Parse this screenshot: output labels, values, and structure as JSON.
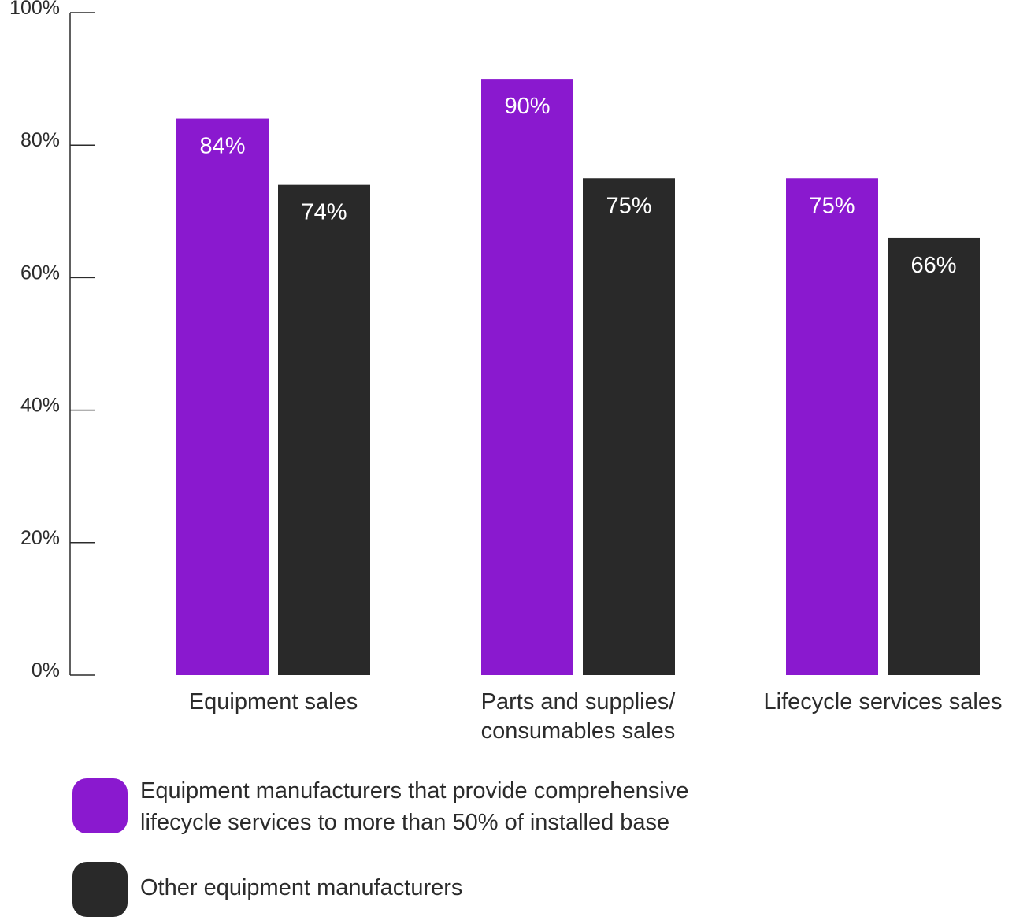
{
  "chart_data": {
    "type": "bar",
    "categories": [
      [
        "Equipment sales"
      ],
      [
        "Parts and supplies/",
        "consumables sales"
      ],
      [
        "Lifecycle services sales"
      ]
    ],
    "series": [
      {
        "name": "Equipment manufacturers that provide comprehensive lifecycle services to more than 50% of installed base",
        "values": [
          84,
          90,
          75
        ],
        "labels": [
          "84%",
          "90%",
          "75%"
        ],
        "color": "#8a19cf"
      },
      {
        "name": "Other equipment manufacturers",
        "values": [
          74,
          75,
          66
        ],
        "labels": [
          "74%",
          "75%",
          "66%"
        ],
        "color": "#292929"
      }
    ],
    "ylim": [
      0,
      100
    ],
    "yticks": [
      0,
      20,
      40,
      60,
      80,
      100
    ],
    "ytick_labels": [
      "0%",
      "20%",
      "40%",
      "60%",
      "80%",
      "100%"
    ],
    "grid": false,
    "legend_position": "bottom-left"
  },
  "legend": {
    "items": [
      {
        "lines": [
          "Equipment manufacturers that provide comprehensive",
          "lifecycle services to more than 50% of installed base"
        ],
        "color": "#8a19cf"
      },
      {
        "lines": [
          "Other equipment manufacturers"
        ],
        "color": "#292929"
      }
    ]
  }
}
